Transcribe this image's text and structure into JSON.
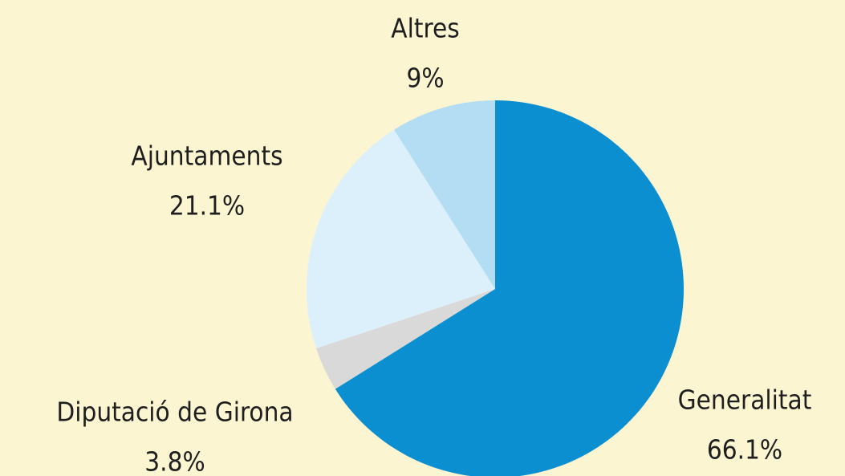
{
  "chart_data": {
    "type": "pie",
    "categories": [
      "Generalitat",
      "Diputació de Girona",
      "Ajuntaments",
      "Altres"
    ],
    "values": [
      66.1,
      3.8,
      21.1,
      9
    ],
    "value_labels": [
      "66.1%",
      "3.8%",
      "21.1%",
      "9%"
    ],
    "colors": [
      "#0b8fd0",
      "#d9d9d9",
      "#dcf0fb",
      "#b3ddf3"
    ]
  }
}
